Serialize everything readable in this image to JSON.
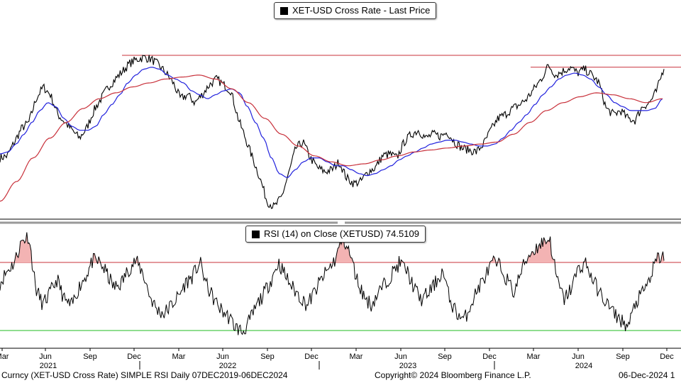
{
  "chart_data": [
    {
      "type": "line",
      "title": "XET-USD Cross Rate - Last Price",
      "x_axis": {
        "month_ticks": [
          "Mar",
          "Jun",
          "Sep",
          "Dec",
          "Mar",
          "Jun",
          "Sep",
          "Dec",
          "Mar",
          "Jun",
          "Sep",
          "Dec",
          "Mar",
          "Jun",
          "Sep",
          "Dec"
        ],
        "years": [
          "2021",
          "2022",
          "2023",
          "2024"
        ]
      },
      "series": [
        {
          "role": "price",
          "color": "#000000",
          "values": [
            0.3,
            0.31,
            0.38,
            0.45,
            0.48,
            0.6,
            0.66,
            0.62,
            0.52,
            0.48,
            0.44,
            0.4,
            0.45,
            0.54,
            0.6,
            0.66,
            0.7,
            0.74,
            0.78,
            0.8,
            0.81,
            0.8,
            0.77,
            0.73,
            0.68,
            0.6,
            0.62,
            0.58,
            0.62,
            0.67,
            0.7,
            0.67,
            0.64,
            0.5,
            0.4,
            0.3,
            0.2,
            0.08,
            0.05,
            0.1,
            0.22,
            0.35,
            0.38,
            0.3,
            0.25,
            0.23,
            0.24,
            0.28,
            0.2,
            0.17,
            0.18,
            0.23,
            0.25,
            0.31,
            0.32,
            0.3,
            0.38,
            0.42,
            0.44,
            0.4,
            0.42,
            0.41,
            0.43,
            0.38,
            0.35,
            0.34,
            0.33,
            0.37,
            0.44,
            0.5,
            0.52,
            0.55,
            0.57,
            0.6,
            0.65,
            0.7,
            0.77,
            0.72,
            0.74,
            0.76,
            0.73,
            0.75,
            0.72,
            0.68,
            0.55,
            0.52,
            0.54,
            0.5,
            0.49,
            0.56,
            0.58,
            0.64,
            0.76
          ]
        },
        {
          "role": "moving-average-short",
          "color": "#2222dd",
          "values": [
            0.32,
            0.33,
            0.37,
            0.42,
            0.48,
            0.54,
            0.58,
            0.56,
            0.5,
            0.46,
            0.44,
            0.44,
            0.46,
            0.52,
            0.57,
            0.62,
            0.68,
            0.72,
            0.75,
            0.76,
            0.75,
            0.72,
            0.7,
            0.68,
            0.64,
            0.62,
            0.6,
            0.62,
            0.64,
            0.65,
            0.63,
            0.56,
            0.48,
            0.4,
            0.3,
            0.22,
            0.2,
            0.24,
            0.28,
            0.3,
            0.3,
            0.28,
            0.26,
            0.26,
            0.24,
            0.22,
            0.21,
            0.22,
            0.24,
            0.26,
            0.29,
            0.31,
            0.33,
            0.35,
            0.37,
            0.38,
            0.39,
            0.39,
            0.38,
            0.37,
            0.36,
            0.36,
            0.37,
            0.4,
            0.44,
            0.48,
            0.52,
            0.57,
            0.62,
            0.66,
            0.7,
            0.72,
            0.73,
            0.72,
            0.7,
            0.66,
            0.62,
            0.58,
            0.56,
            0.54,
            0.54,
            0.54,
            0.55,
            0.6
          ]
        },
        {
          "role": "moving-average-long",
          "color": "#c8303a",
          "values": [
            0.08,
            0.18,
            0.3,
            0.4,
            0.48,
            0.55,
            0.6,
            0.63,
            0.66,
            0.68,
            0.7,
            0.71,
            0.72,
            0.7,
            0.65,
            0.58,
            0.5,
            0.42,
            0.36,
            0.31,
            0.28,
            0.26,
            0.27,
            0.29,
            0.31,
            0.33,
            0.34,
            0.35,
            0.36,
            0.37,
            0.38,
            0.42,
            0.48,
            0.54,
            0.58,
            0.61,
            0.63,
            0.62,
            0.6,
            0.58,
            0.6
          ]
        }
      ],
      "reference_lines": [
        {
          "color": "#c8303a",
          "level": 0.82
        },
        {
          "color": "#c8303a",
          "level": 0.76
        }
      ]
    },
    {
      "type": "line",
      "title": "RSI (14)  on Close (XETUSD) 74.5109",
      "last_value": 74.5109,
      "ylim": [
        20,
        90
      ],
      "thresholds": [
        {
          "level": 70,
          "color": "#c8303a"
        },
        {
          "level": 30,
          "color": "#22bb22"
        }
      ],
      "series": [
        {
          "role": "rsi",
          "color": "#000000",
          "values": [
            58,
            65,
            70,
            82,
            86,
            55,
            45,
            52,
            60,
            48,
            44,
            55,
            62,
            71,
            70,
            63,
            55,
            58,
            66,
            71,
            64,
            50,
            42,
            40,
            45,
            50,
            58,
            62,
            70,
            56,
            48,
            42,
            38,
            32,
            29,
            36,
            45,
            52,
            60,
            70,
            62,
            55,
            50,
            45,
            52,
            60,
            66,
            72,
            85,
            75,
            60,
            50,
            45,
            52,
            58,
            64,
            70,
            65,
            55,
            48,
            52,
            58,
            65,
            48,
            40,
            36,
            46,
            55,
            62,
            70,
            68,
            60,
            52,
            65,
            74,
            78,
            82,
            84,
            60,
            48,
            55,
            66,
            70,
            60,
            52,
            46,
            40,
            36,
            32,
            46,
            52,
            60,
            72,
            74
          ]
        }
      ]
    }
  ],
  "legend": {
    "price": "XET-USD Cross Rate - Last Price",
    "rsi": "RSI (14)  on Close (XETUSD) 74.5109"
  },
  "footer": {
    "left": "Curncy (XET-USD Cross Rate) SIMPLE RSI  Daily 07DEC2019-06DEC2024",
    "center": "Copyright© 2024 Bloomberg Finance L.P.",
    "right": "06-Dec-2024 1"
  },
  "colors": {
    "price": "#000000",
    "ma_short": "#2222dd",
    "ma_long": "#c8303a",
    "overbought": "#c8303a",
    "oversold": "#22bb22",
    "overbought_fill": "#f3b3b3"
  }
}
